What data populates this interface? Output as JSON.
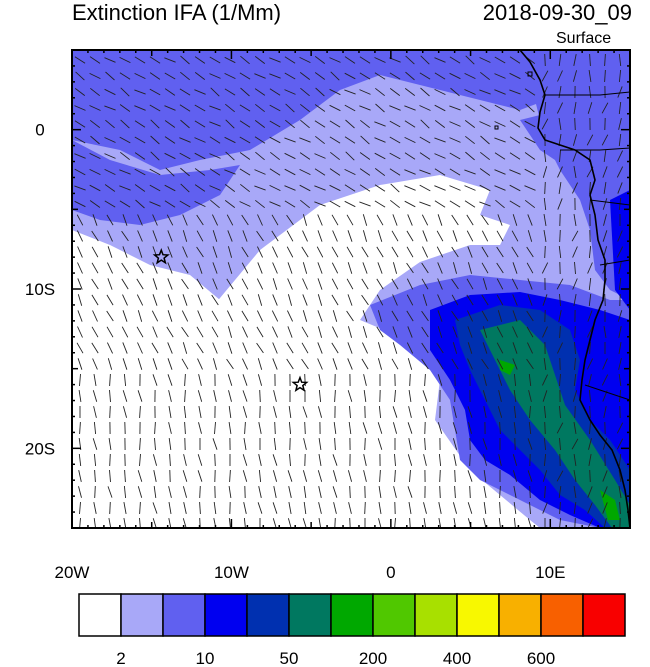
{
  "title": "Extinction IFA (1/Mm)",
  "datetime": "2018-09-30_09",
  "level": "Surface",
  "map": {
    "lon_range": [
      -20,
      15
    ],
    "lat_range": [
      -25,
      5
    ],
    "x_ticks": [
      {
        "value": -20,
        "label": "20W"
      },
      {
        "value": -10,
        "label": "10W"
      },
      {
        "value": 0,
        "label": "0"
      },
      {
        "value": 10,
        "label": "10E"
      }
    ],
    "y_ticks": [
      {
        "value": 0,
        "label": "0"
      },
      {
        "value": -10,
        "label": "10S"
      },
      {
        "value": -20,
        "label": "20S"
      }
    ],
    "markers": [
      {
        "type": "star",
        "lon": -14.4,
        "lat": -8.0
      },
      {
        "type": "star",
        "lon": -5.7,
        "lat": -16.0
      }
    ],
    "wind_vectors": "wind barbs across domain, mostly SE trade winds over ocean"
  },
  "colorbar": {
    "labels": [
      "2",
      "10",
      "50",
      "200",
      "400",
      "600"
    ],
    "colors": [
      "#ffffff",
      "#a8a8f8",
      "#6060f0",
      "#0000f0",
      "#0030b0",
      "#007860",
      "#00a800",
      "#50c800",
      "#a8e000",
      "#f8f800",
      "#f8b000",
      "#f86000",
      "#f80000"
    ]
  }
}
